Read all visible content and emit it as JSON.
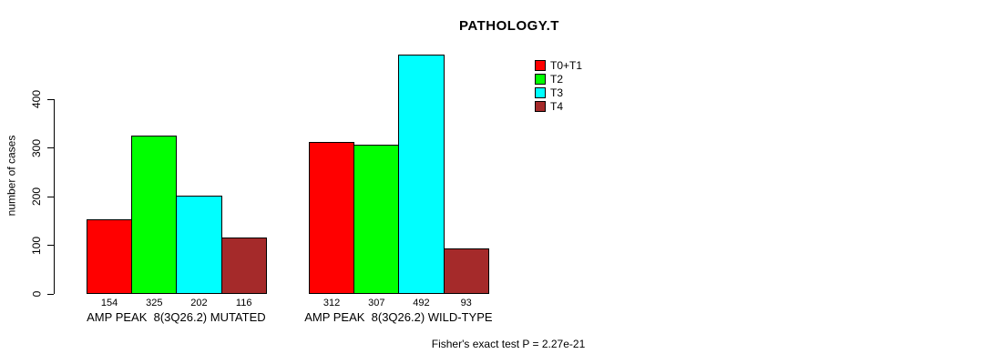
{
  "chart_data": {
    "type": "bar",
    "title": "PATHOLOGY.T",
    "ylabel": "number of cases",
    "yticks": [
      0,
      100,
      200,
      300,
      400
    ],
    "ylim": [
      0,
      500
    ],
    "grid": false,
    "legend_position": "top-right",
    "categories": [
      "AMP PEAK  8(3Q26.2) MUTATED",
      "AMP PEAK  8(3Q26.2) WILD-TYPE"
    ],
    "series": [
      {
        "name": "T0+T1",
        "color": "#ff0000",
        "values": [
          154,
          312
        ]
      },
      {
        "name": "T2",
        "color": "#00ff00",
        "values": [
          325,
          307
        ]
      },
      {
        "name": "T3",
        "color": "#00ffff",
        "values": [
          202,
          492
        ]
      },
      {
        "name": "T4",
        "color": "#a52a2a",
        "values": [
          116,
          93
        ]
      }
    ],
    "footer": "Fisher's exact test P = 2.27e-21"
  },
  "colors": {
    "background": "#ffffff",
    "axis": "#000000",
    "bar_border": "#000000",
    "text": "#000000"
  }
}
